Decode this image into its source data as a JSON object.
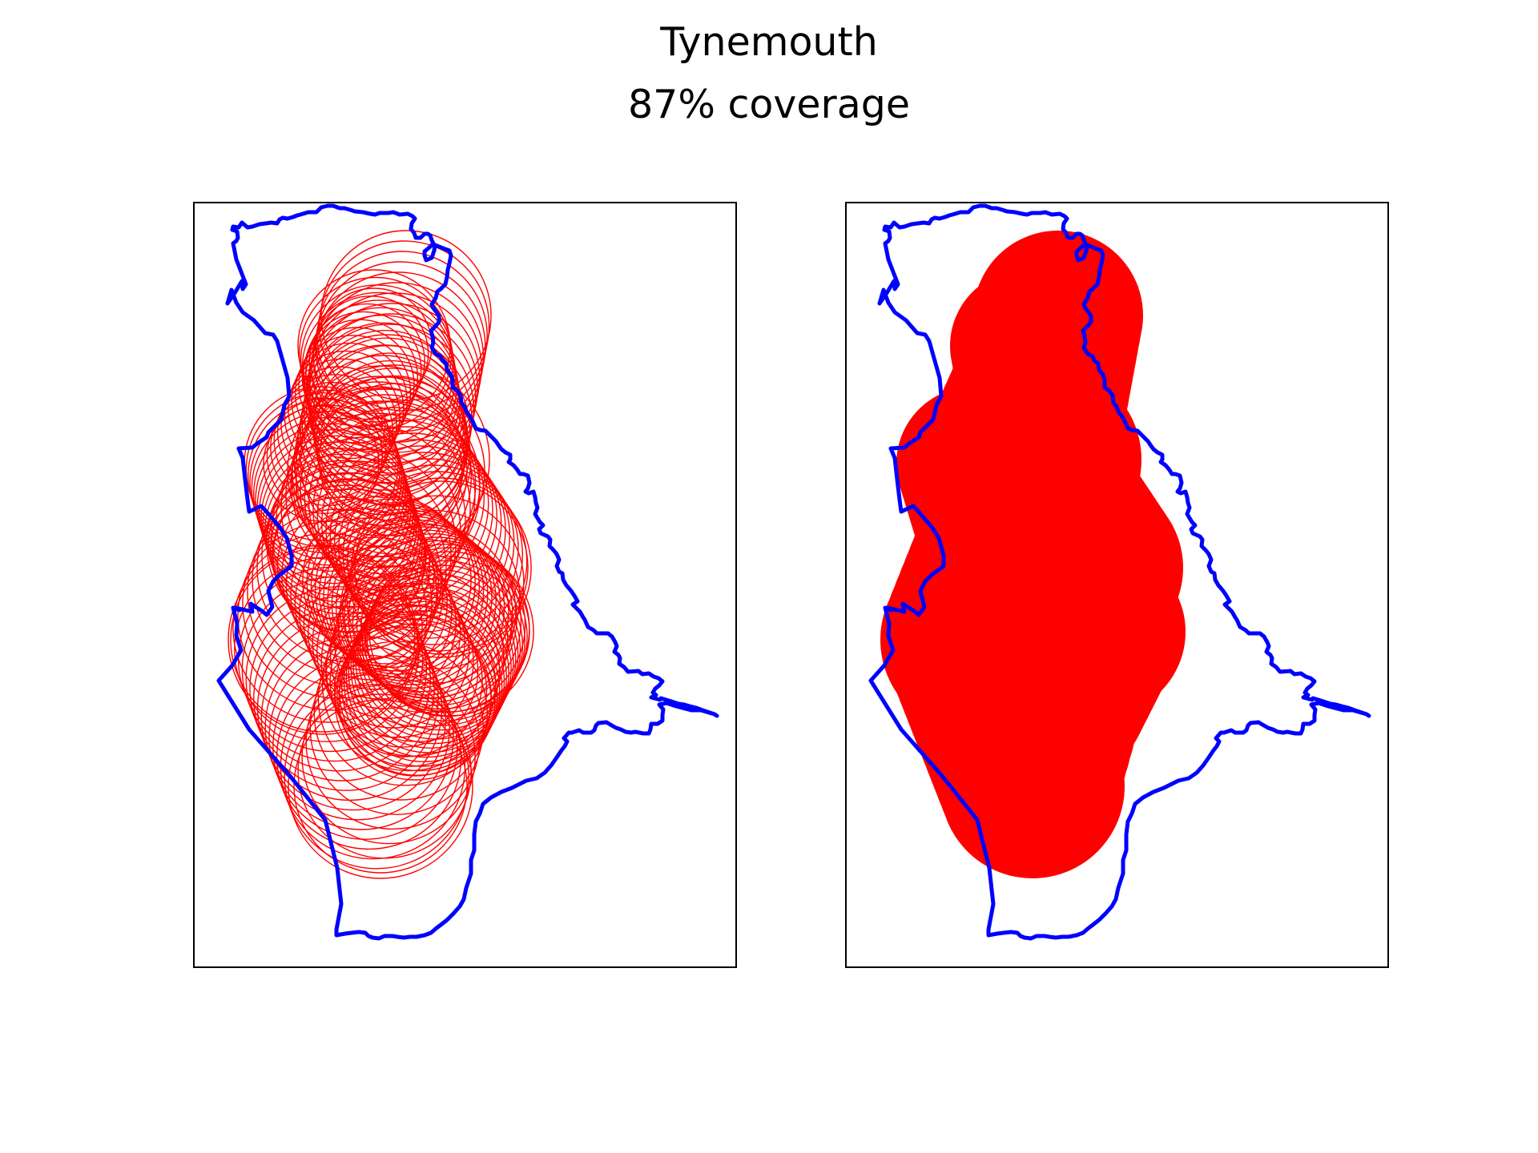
{
  "figure": {
    "title": "Tynemouth",
    "subtitle": "87% coverage"
  },
  "panels": [
    {
      "style": "outlined-circles",
      "circle_color": "#ff0000",
      "boundary_color": "#0000ff"
    },
    {
      "style": "filled-union",
      "fill_color": "#ff0000",
      "boundary_color": "#0000ff"
    }
  ]
}
